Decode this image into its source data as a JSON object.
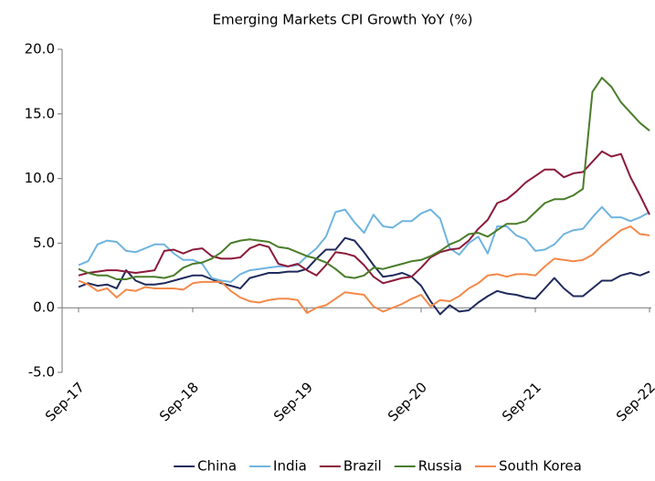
{
  "chart_data": {
    "type": "line",
    "title": "Emerging Markets CPI Growth YoY (%)",
    "categories": [
      "Sep-17",
      null,
      null,
      null,
      null,
      null,
      null,
      null,
      null,
      null,
      null,
      null,
      "Sep-18",
      null,
      null,
      null,
      null,
      null,
      null,
      null,
      null,
      null,
      null,
      null,
      "Sep-19",
      null,
      null,
      null,
      null,
      null,
      null,
      null,
      null,
      null,
      null,
      null,
      "Sep-20",
      null,
      null,
      null,
      null,
      null,
      null,
      null,
      null,
      null,
      null,
      null,
      "Sep-21",
      null,
      null,
      null,
      null,
      null,
      null,
      null,
      null,
      null,
      null,
      null,
      "Sep-22"
    ],
    "ylim": [
      -5,
      20
    ],
    "yticks": [
      {
        "value": -5,
        "label": "-5.0"
      },
      {
        "value": 0,
        "label": "0.0"
      },
      {
        "value": 5,
        "label": "5.0"
      },
      {
        "value": 10,
        "label": "10.0"
      },
      {
        "value": 15,
        "label": "15.0"
      },
      {
        "value": 20,
        "label": "20.0"
      }
    ],
    "grid": false,
    "legend": "bottom",
    "series": [
      {
        "name": "China",
        "color": "#1f2a5c",
        "values": [
          1.6,
          1.9,
          1.7,
          1.8,
          1.5,
          2.9,
          2.1,
          1.8,
          1.8,
          1.9,
          2.1,
          2.3,
          2.5,
          2.5,
          2.2,
          1.9,
          1.7,
          1.5,
          2.3,
          2.5,
          2.7,
          2.7,
          2.8,
          2.8,
          3.0,
          3.8,
          4.5,
          4.5,
          5.4,
          5.2,
          4.3,
          3.3,
          2.4,
          2.5,
          2.7,
          2.4,
          1.7,
          0.5,
          -0.5,
          0.2,
          -0.3,
          -0.2,
          0.4,
          0.9,
          1.3,
          1.1,
          1.0,
          0.8,
          0.7,
          1.5,
          2.3,
          1.5,
          0.9,
          0.9,
          1.5,
          2.1,
          2.1,
          2.5,
          2.7,
          2.5,
          2.8
        ]
      },
      {
        "name": "India",
        "color": "#6fb4e0",
        "values": [
          3.3,
          3.6,
          4.9,
          5.2,
          5.1,
          4.4,
          4.3,
          4.6,
          4.9,
          4.9,
          4.2,
          3.7,
          3.7,
          3.4,
          2.3,
          2.1,
          2.0,
          2.6,
          2.9,
          3.0,
          3.1,
          3.2,
          3.2,
          3.3,
          4.0,
          4.6,
          5.5,
          7.4,
          7.6,
          6.6,
          5.8,
          7.2,
          6.3,
          6.2,
          6.7,
          6.7,
          7.3,
          7.6,
          6.9,
          4.6,
          4.1,
          5.0,
          5.5,
          4.2,
          6.3,
          6.3,
          5.6,
          5.3,
          4.4,
          4.5,
          4.9,
          5.7,
          6.0,
          6.1,
          7.0,
          7.8,
          7.0,
          7.0,
          6.7,
          7.0,
          7.4
        ]
      },
      {
        "name": "Brazil",
        "color": "#8b1a3a",
        "values": [
          2.5,
          2.7,
          2.8,
          2.9,
          2.9,
          2.8,
          2.7,
          2.8,
          2.9,
          4.4,
          4.5,
          4.2,
          4.5,
          4.6,
          4.0,
          3.8,
          3.8,
          3.9,
          4.6,
          4.9,
          4.7,
          3.4,
          3.2,
          3.4,
          2.9,
          2.5,
          3.3,
          4.3,
          4.2,
          4.0,
          3.3,
          2.4,
          1.9,
          2.1,
          2.3,
          2.4,
          3.1,
          3.9,
          4.3,
          4.5,
          4.6,
          5.2,
          6.1,
          6.8,
          8.1,
          8.4,
          9.0,
          9.7,
          10.2,
          10.7,
          10.7,
          10.1,
          10.4,
          10.5,
          11.3,
          12.1,
          11.7,
          11.9,
          10.1,
          8.7,
          7.2
        ]
      },
      {
        "name": "Russia",
        "color": "#4a7d2a",
        "values": [
          3.0,
          2.7,
          2.5,
          2.5,
          2.2,
          2.2,
          2.4,
          2.4,
          2.4,
          2.3,
          2.5,
          3.1,
          3.4,
          3.5,
          3.8,
          4.3,
          5.0,
          5.2,
          5.3,
          5.2,
          5.1,
          4.7,
          4.6,
          4.3,
          4.0,
          3.8,
          3.5,
          3.0,
          2.4,
          2.3,
          2.5,
          3.1,
          3.0,
          3.2,
          3.4,
          3.6,
          3.7,
          4.0,
          4.4,
          4.9,
          5.2,
          5.7,
          5.8,
          5.5,
          6.0,
          6.5,
          6.5,
          6.7,
          7.4,
          8.1,
          8.4,
          8.4,
          8.7,
          9.2,
          16.7,
          17.8,
          17.1,
          15.9,
          15.1,
          14.3,
          13.7
        ]
      },
      {
        "name": "South Korea",
        "color": "#f4894a",
        "values": [
          2.1,
          1.8,
          1.3,
          1.5,
          0.8,
          1.4,
          1.3,
          1.6,
          1.5,
          1.5,
          1.5,
          1.4,
          1.9,
          2.0,
          2.0,
          2.0,
          1.3,
          0.8,
          0.5,
          0.4,
          0.6,
          0.7,
          0.7,
          0.6,
          -0.4,
          0.0,
          0.2,
          0.7,
          1.2,
          1.1,
          1.0,
          0.1,
          -0.3,
          0.0,
          0.3,
          0.7,
          1.0,
          0.1,
          0.6,
          0.5,
          0.9,
          1.5,
          1.9,
          2.5,
          2.6,
          2.4,
          2.6,
          2.6,
          2.5,
          3.2,
          3.8,
          3.7,
          3.6,
          3.7,
          4.1,
          4.8,
          5.4,
          6.0,
          6.3,
          5.7,
          5.6
        ]
      }
    ]
  }
}
